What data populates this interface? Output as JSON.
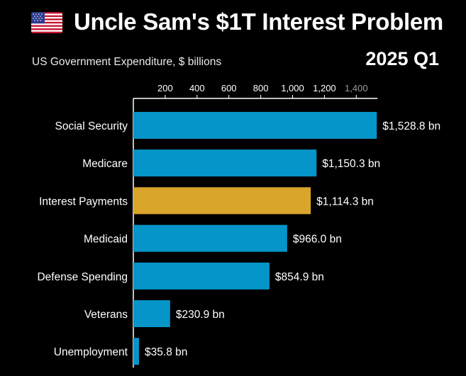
{
  "header": {
    "title": "Uncle Sam's $1T Interest Problem",
    "subtitle": "US Government Expenditure, $ billions",
    "period": "2025 Q1",
    "flag_icon": "us-flag-icon"
  },
  "colors": {
    "background": "#000000",
    "bar": "#0695c9",
    "highlight": "#d9a52a",
    "text": "#ffffff",
    "axis": "#ffffff",
    "faded_tick": "#9a9a9a"
  },
  "chart_data": {
    "type": "bar",
    "orientation": "horizontal",
    "title": "Uncle Sam's $1T Interest Problem",
    "subtitle": "US Government Expenditure, $ billions",
    "categories": [
      "Social Security",
      "Medicare",
      "Interest Payments",
      "Medicaid",
      "Defense Spending",
      "Veterans",
      "Unemployment"
    ],
    "values": [
      1528.8,
      1150.3,
      1114.3,
      966.0,
      854.9,
      230.9,
      35.8
    ],
    "value_labels": [
      "$1,528.8 bn",
      "$1,150.3 bn",
      "$1,114.3 bn",
      "$966.0 bn",
      "$854.9 bn",
      "$230.9 bn",
      "$35.8 bn"
    ],
    "highlight_category": "Interest Payments",
    "x_ticks": [
      200,
      400,
      600,
      800,
      1000,
      1200,
      1400
    ],
    "x_tick_labels": [
      "200",
      "400",
      "600",
      "800",
      "1,000",
      "1,200",
      "1,400"
    ],
    "xlim": [
      0,
      1528.8
    ],
    "x_axis_position": "top",
    "grid": false,
    "legend": "none"
  }
}
